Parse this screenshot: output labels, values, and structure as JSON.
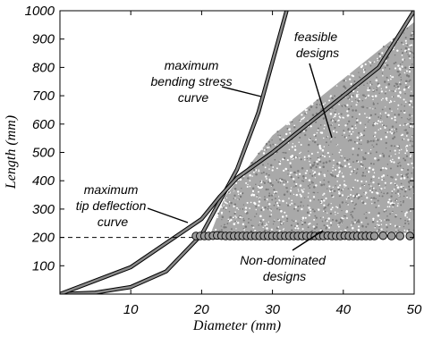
{
  "chart_data": {
    "type": "scatter",
    "xlabel": "Diameter (mm)",
    "ylabel": "Length (mm)",
    "xlim": [
      0,
      50
    ],
    "ylim": [
      0,
      1000
    ],
    "x_ticks": [
      10,
      20,
      30,
      40,
      50
    ],
    "y_ticks": [
      100,
      200,
      300,
      400,
      500,
      600,
      700,
      800,
      900,
      1000
    ],
    "grid": false,
    "colors": {
      "curve": "#8a8a8a",
      "feasible": "#8f8f8f",
      "nondominated": "#9a9a9a"
    },
    "curves": {
      "bending_stress": [
        [
          0,
          0
        ],
        [
          5,
          5
        ],
        [
          10,
          25
        ],
        [
          15,
          80
        ],
        [
          20,
          210
        ],
        [
          25,
          440
        ],
        [
          28,
          640
        ],
        [
          30,
          820
        ],
        [
          32,
          1000
        ]
      ],
      "tip_deflection": [
        [
          0,
          0
        ],
        [
          10,
          95
        ],
        [
          20,
          265
        ],
        [
          22.6,
          345
        ],
        [
          25,
          410
        ],
        [
          30,
          500
        ],
        [
          35,
          600
        ],
        [
          40,
          700
        ],
        [
          45,
          800
        ],
        [
          50,
          1000
        ]
      ]
    },
    "feasible_region": {
      "vertices": [
        [
          23.3,
          345
        ],
        [
          30,
          560
        ],
        [
          40,
          760
        ],
        [
          50,
          960
        ],
        [
          50,
          215
        ],
        [
          21.3,
          215
        ]
      ]
    },
    "reference_line": {
      "y": 200,
      "x_range": [
        0,
        19
      ],
      "style": "dashed"
    },
    "non_dominated": {
      "x": [
        19.2,
        19.8,
        20.4,
        21.0,
        21.6,
        22.2,
        22.8,
        23.4,
        24.0,
        24.6,
        25.2,
        25.8,
        26.4,
        27.0,
        27.6,
        28.2,
        28.8,
        29.4,
        30.0,
        30.6,
        31.2,
        31.8,
        32.4,
        33.0,
        33.6,
        34.2,
        34.8,
        35.4,
        36.0,
        36.6,
        37.2,
        37.8,
        38.4,
        39.0,
        39.6,
        40.2,
        40.8,
        41.4,
        42.0,
        42.6,
        43.2,
        43.8,
        44.4,
        45.6,
        46.8,
        48.0,
        49.4
      ],
      "y": [
        205,
        205,
        205,
        205,
        206,
        207,
        206,
        205,
        205,
        205,
        205,
        205,
        205,
        205,
        205,
        205,
        205,
        205,
        205,
        205,
        205,
        205,
        205,
        205,
        205,
        205,
        205,
        205,
        205,
        205,
        205,
        206,
        205,
        205,
        205,
        206,
        205,
        205,
        205,
        205,
        205,
        205,
        205,
        206,
        205,
        205,
        205
      ]
    },
    "annotations": [
      {
        "id": "ann-bending-stress",
        "lines": [
          "maximum",
          "bending stress",
          "curve"
        ]
      },
      {
        "id": "ann-tip-deflection",
        "lines": [
          "maximum",
          "tip deflection",
          "curve"
        ]
      },
      {
        "id": "ann-feasible",
        "lines": [
          "feasible",
          "designs"
        ]
      },
      {
        "id": "ann-non-dominated",
        "lines": [
          "Non-dominated",
          "designs"
        ]
      }
    ]
  }
}
